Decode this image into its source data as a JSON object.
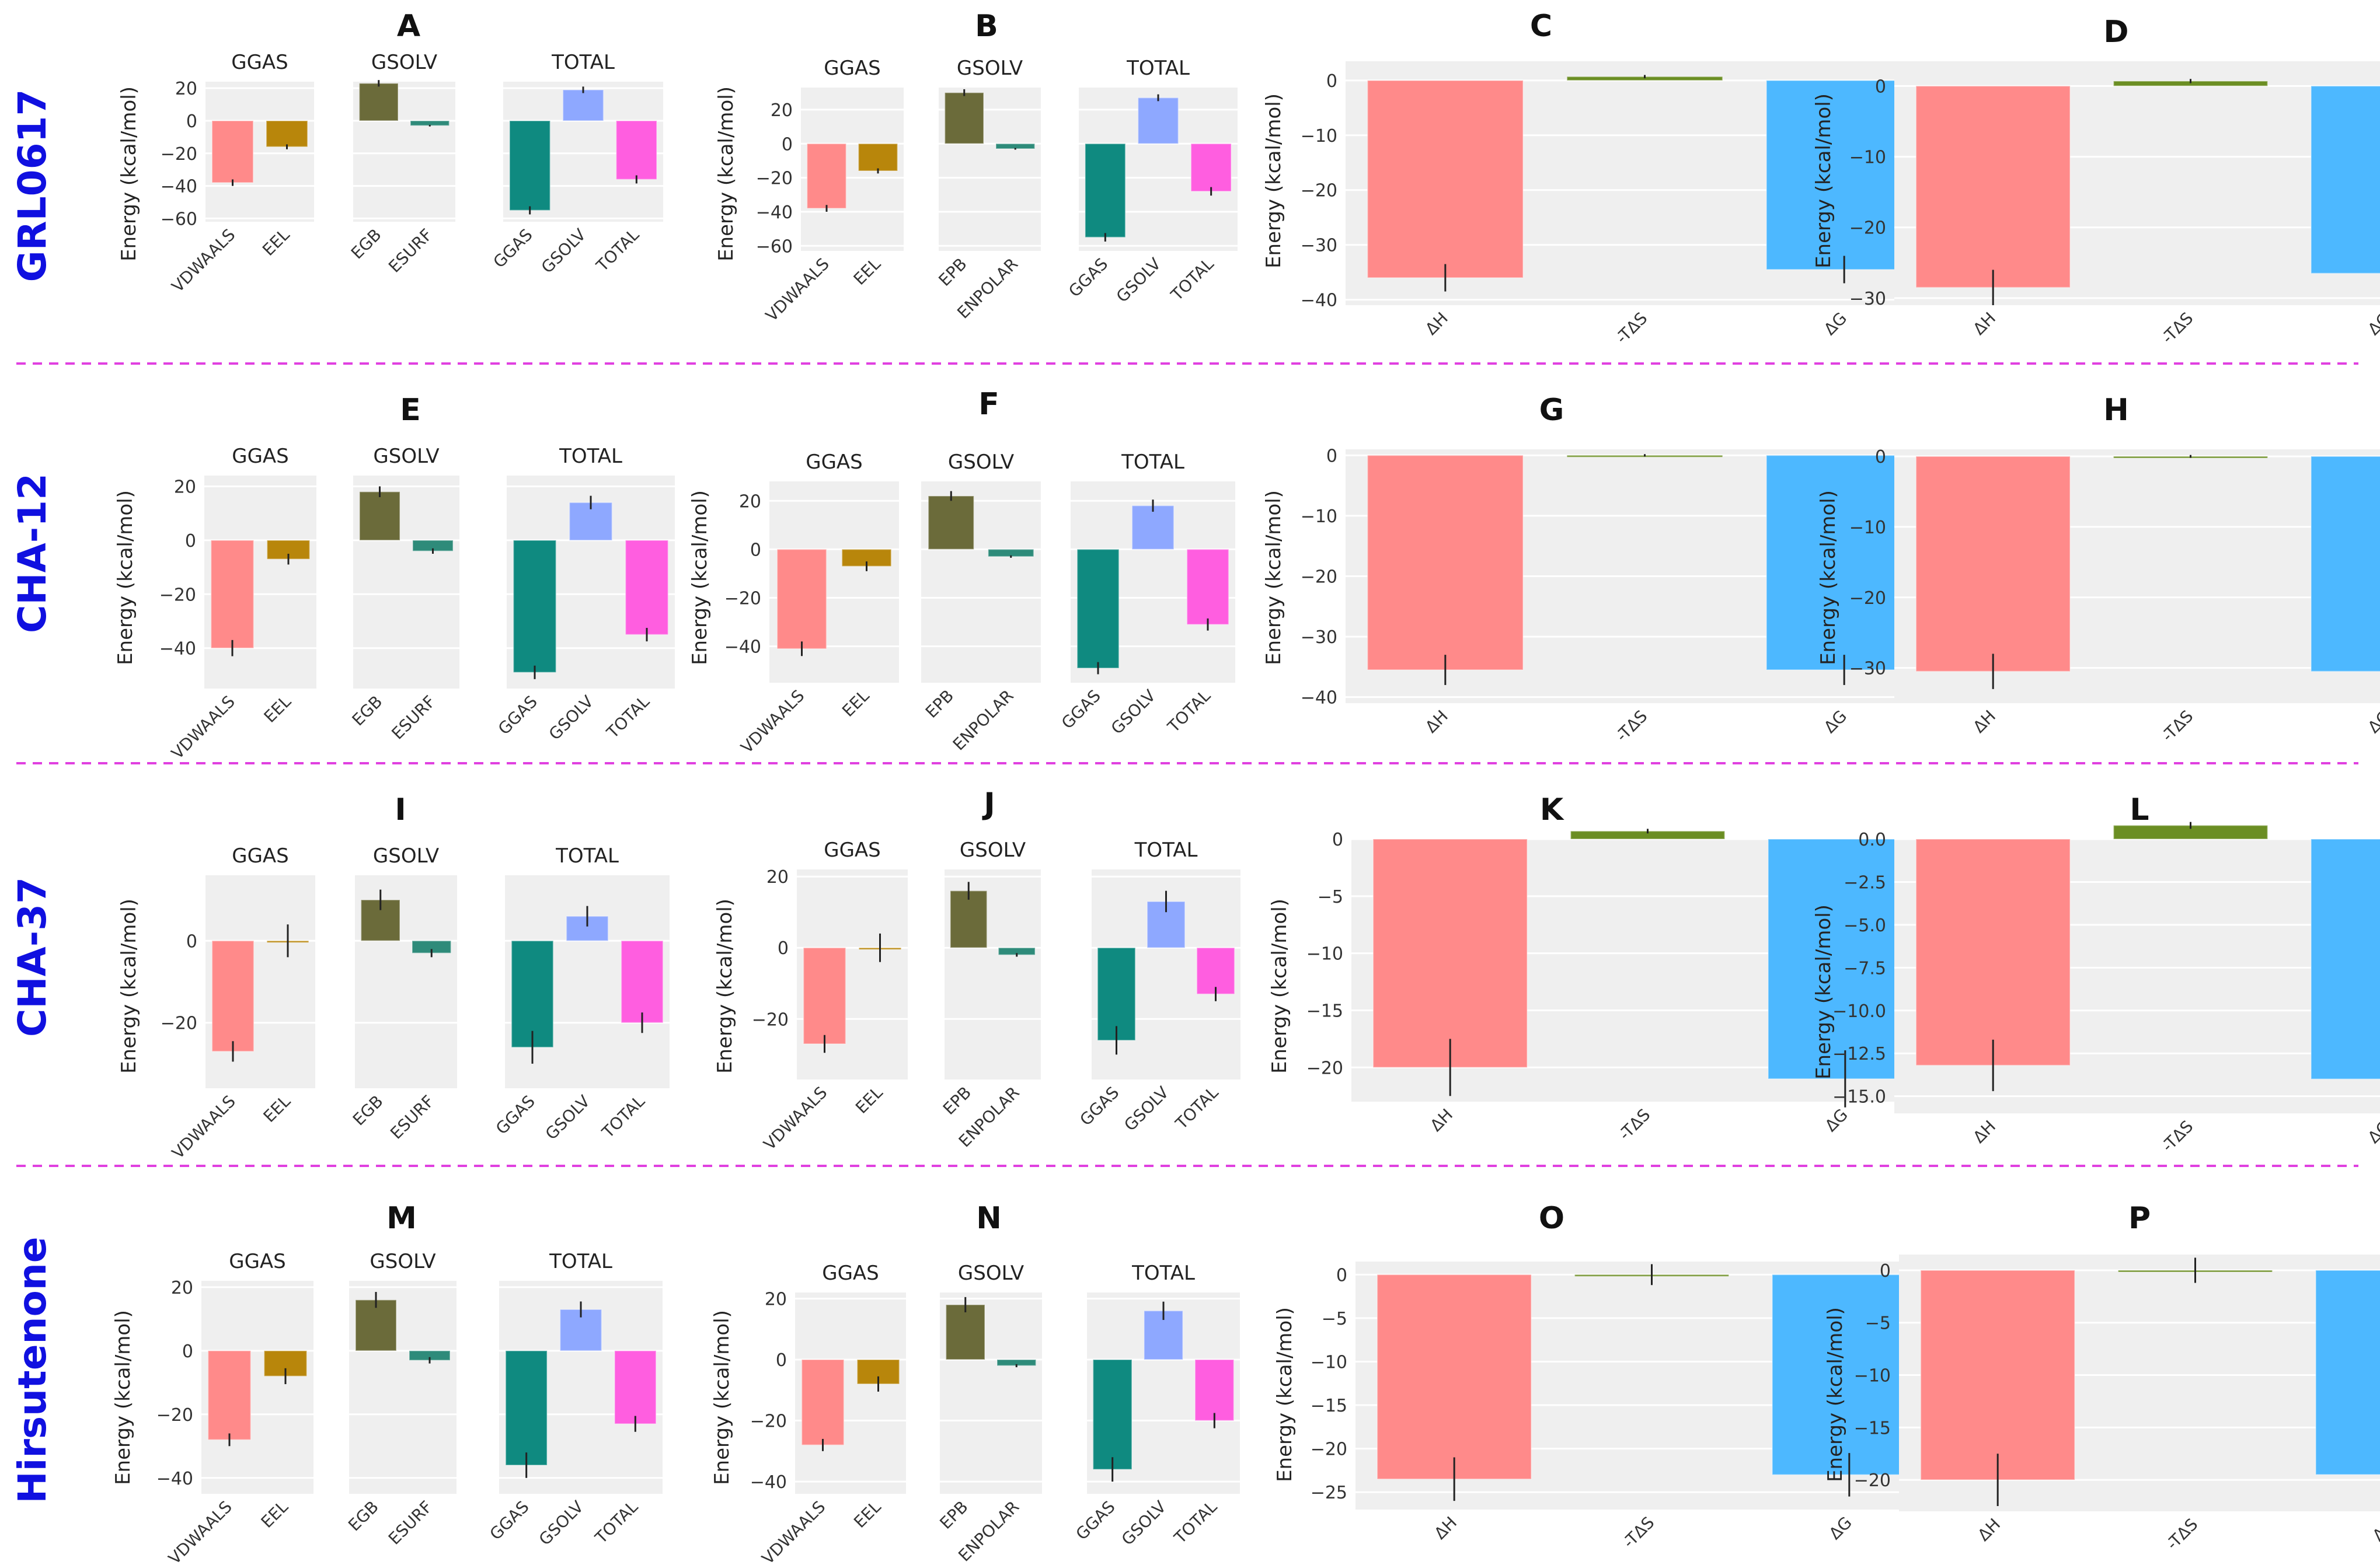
{
  "figure": {
    "row_labels": [
      "GRL0617",
      "CHA-12",
      "CHA-37",
      "Hirsutenone"
    ],
    "ylabel": "Energy (kcal/mol)",
    "colors": {
      "VDWAALS": "#ff8a8a",
      "EEL": "#b8860b",
      "EGB": "#6b6b3a",
      "EPB": "#6b6b3a",
      "ESURF": "#2e8b7a",
      "ENPOLAR": "#2e8b7a",
      "GGAS": "#0f8a80",
      "GSOLV": "#8ea8ff",
      "TOTAL": "#ff5ee0",
      "dH": "#ff8a8a",
      "TdS": "#6b8e23",
      "dG": "#4db8ff",
      "panel_bg": "#efefef",
      "grid": "#ffffff",
      "separator": "#e040e0",
      "row_label": "#1010e0"
    }
  },
  "chart_data": [
    {
      "letter": "A",
      "type": "bar",
      "subpanels": [
        {
          "title": "GGAS",
          "categories": [
            "VDWAALS",
            "EEL"
          ],
          "values": [
            -38,
            -16
          ],
          "errors": [
            2,
            1.5
          ],
          "ylim": [
            24,
            -62
          ],
          "ticks": [
            -60,
            -40,
            -20,
            0,
            20
          ],
          "tick_labels": [
            "−60",
            "−40",
            "−20",
            "0",
            "20"
          ]
        },
        {
          "title": "GSOLV",
          "categories": [
            "EGB",
            "ESURF"
          ],
          "values": [
            23,
            -3
          ],
          "errors": [
            2,
            0.5
          ],
          "ylim": [
            24,
            -62
          ]
        },
        {
          "title": "TOTAL",
          "categories": [
            "GGAS",
            "GSOLV",
            "TOTAL"
          ],
          "values": [
            -55,
            19,
            -36
          ],
          "errors": [
            2.5,
            2,
            2.5
          ],
          "ylim": [
            24,
            -62
          ]
        }
      ]
    },
    {
      "letter": "B",
      "type": "bar",
      "subpanels": [
        {
          "title": "GGAS",
          "categories": [
            "VDWAALS",
            "EEL"
          ],
          "values": [
            -38,
            -16
          ],
          "errors": [
            2,
            1.5
          ],
          "ylim": [
            33,
            -63
          ],
          "ticks": [
            -60,
            -40,
            -20,
            0,
            20
          ],
          "tick_labels": [
            "−60",
            "−40",
            "−20",
            "0",
            "20"
          ]
        },
        {
          "title": "GSOLV",
          "categories": [
            "EPB",
            "ENPOLAR"
          ],
          "values": [
            30,
            -3
          ],
          "errors": [
            2,
            0.5
          ],
          "ylim": [
            33,
            -63
          ]
        },
        {
          "title": "TOTAL",
          "categories": [
            "GGAS",
            "GSOLV",
            "TOTAL"
          ],
          "values": [
            -55,
            27,
            -28
          ],
          "errors": [
            2.5,
            2,
            2.5
          ],
          "ylim": [
            33,
            -63
          ]
        }
      ]
    },
    {
      "letter": "C",
      "type": "bar",
      "subpanels": [
        {
          "title": "",
          "categories": [
            "ΔH",
            "-TΔS",
            "ΔG"
          ],
          "values": [
            -36,
            0.7,
            -34.5
          ],
          "errors": [
            2.5,
            0.3,
            2.5
          ],
          "ylim": [
            3.5,
            -41
          ],
          "ticks": [
            -40,
            -30,
            -20,
            -10,
            0
          ],
          "tick_labels": [
            "−40",
            "−30",
            "−20",
            "−10",
            "0"
          ]
        }
      ]
    },
    {
      "letter": "D",
      "type": "bar",
      "subpanels": [
        {
          "title": "",
          "categories": [
            "ΔH",
            "-TΔS",
            "ΔG"
          ],
          "values": [
            -28.5,
            0.7,
            -26.5
          ],
          "errors": [
            2.5,
            0.3,
            2.5
          ],
          "ylim": [
            3.5,
            -31
          ],
          "ticks": [
            -30,
            -20,
            -10,
            0
          ],
          "tick_labels": [
            "−30",
            "−20",
            "−10",
            "0"
          ]
        }
      ]
    },
    {
      "letter": "E",
      "type": "bar",
      "subpanels": [
        {
          "title": "GGAS",
          "categories": [
            "VDWAALS",
            "EEL"
          ],
          "values": [
            -40,
            -7
          ],
          "errors": [
            3,
            2
          ],
          "ylim": [
            24,
            -55
          ],
          "ticks": [
            -40,
            -20,
            0,
            20
          ],
          "tick_labels": [
            "−40",
            "−20",
            "0",
            "20"
          ]
        },
        {
          "title": "GSOLV",
          "categories": [
            "EGB",
            "ESURF"
          ],
          "values": [
            18,
            -4
          ],
          "errors": [
            2,
            1
          ],
          "ylim": [
            24,
            -55
          ]
        },
        {
          "title": "TOTAL",
          "categories": [
            "GGAS",
            "GSOLV",
            "TOTAL"
          ],
          "values": [
            -49,
            14,
            -35
          ],
          "errors": [
            2.5,
            2.5,
            2.5
          ],
          "ylim": [
            24,
            -55
          ]
        }
      ]
    },
    {
      "letter": "F",
      "type": "bar",
      "subpanels": [
        {
          "title": "GGAS",
          "categories": [
            "VDWAALS",
            "EEL"
          ],
          "values": [
            -41,
            -7
          ],
          "errors": [
            3,
            2
          ],
          "ylim": [
            28,
            -55
          ],
          "ticks": [
            -40,
            -20,
            0,
            20
          ],
          "tick_labels": [
            "−40",
            "−20",
            "0",
            "20"
          ]
        },
        {
          "title": "GSOLV",
          "categories": [
            "EPB",
            "ENPOLAR"
          ],
          "values": [
            22,
            -3
          ],
          "errors": [
            2,
            0.5
          ],
          "ylim": [
            28,
            -55
          ]
        },
        {
          "title": "TOTAL",
          "categories": [
            "GGAS",
            "GSOLV",
            "TOTAL"
          ],
          "values": [
            -49,
            18,
            -31
          ],
          "errors": [
            2.5,
            2.5,
            2.5
          ],
          "ylim": [
            28,
            -55
          ]
        }
      ]
    },
    {
      "letter": "G",
      "type": "bar",
      "subpanels": [
        {
          "title": "",
          "categories": [
            "ΔH",
            "-TΔS",
            "ΔG"
          ],
          "values": [
            -35.5,
            0,
            -35.5
          ],
          "errors": [
            2.5,
            0.2,
            2.5
          ],
          "ylim": [
            1,
            -41
          ],
          "ticks": [
            -40,
            -30,
            -20,
            -10,
            0
          ],
          "tick_labels": [
            "−40",
            "−30",
            "−20",
            "−10",
            "0"
          ]
        }
      ]
    },
    {
      "letter": "H",
      "type": "bar",
      "subpanels": [
        {
          "title": "",
          "categories": [
            "ΔH",
            "-TΔS",
            "ΔG"
          ],
          "values": [
            -30.5,
            0,
            -30.5
          ],
          "errors": [
            2.5,
            0.2,
            2.5
          ],
          "ylim": [
            1,
            -35
          ],
          "ticks": [
            -30,
            -20,
            -10,
            0
          ],
          "tick_labels": [
            "−30",
            "−20",
            "−10",
            "0"
          ]
        }
      ]
    },
    {
      "letter": "I",
      "type": "bar",
      "subpanels": [
        {
          "title": "GGAS",
          "categories": [
            "VDWAALS",
            "EEL"
          ],
          "values": [
            -27,
            0
          ],
          "errors": [
            2.5,
            4
          ],
          "ylim": [
            16,
            -36
          ],
          "ticks": [
            -20,
            0
          ],
          "tick_labels": [
            "−20",
            "0"
          ]
        },
        {
          "title": "GSOLV",
          "categories": [
            "EGB",
            "ESURF"
          ],
          "values": [
            10,
            -3
          ],
          "errors": [
            2.5,
            1
          ],
          "ylim": [
            16,
            -36
          ]
        },
        {
          "title": "TOTAL",
          "categories": [
            "GGAS",
            "GSOLV",
            "TOTAL"
          ],
          "values": [
            -26,
            6,
            -20
          ],
          "errors": [
            4,
            2.5,
            2.5
          ],
          "ylim": [
            16,
            -36
          ]
        }
      ]
    },
    {
      "letter": "J",
      "type": "bar",
      "subpanels": [
        {
          "title": "GGAS",
          "categories": [
            "VDWAALS",
            "EEL"
          ],
          "values": [
            -27,
            0
          ],
          "errors": [
            2.5,
            4
          ],
          "ylim": [
            22,
            -37
          ],
          "ticks": [
            -20,
            0,
            20
          ],
          "tick_labels": [
            "−20",
            "0",
            "20"
          ]
        },
        {
          "title": "GSOLV",
          "categories": [
            "EPB",
            "ENPOLAR"
          ],
          "values": [
            16,
            -2
          ],
          "errors": [
            2.5,
            0.5
          ],
          "ylim": [
            22,
            -37
          ]
        },
        {
          "title": "TOTAL",
          "categories": [
            "GGAS",
            "GSOLV",
            "TOTAL"
          ],
          "values": [
            -26,
            13,
            -13
          ],
          "errors": [
            4,
            3,
            2
          ]
        }
      ]
    },
    {
      "letter": "K",
      "type": "bar",
      "subpanels": [
        {
          "title": "",
          "categories": [
            "ΔH",
            "-TΔS",
            "ΔG"
          ],
          "values": [
            -20,
            0.7,
            -21
          ],
          "errors": [
            2.5,
            0.2,
            2.5
          ],
          "ylim": [
            0,
            -23
          ],
          "ticks": [
            -20,
            -15,
            -10,
            -5,
            0
          ],
          "tick_labels": [
            "−20",
            "−15",
            "−10",
            "−5",
            "0"
          ]
        }
      ]
    },
    {
      "letter": "L",
      "type": "bar",
      "subpanels": [
        {
          "title": "",
          "categories": [
            "ΔH",
            "-TΔS",
            "ΔG"
          ],
          "values": [
            -13.2,
            0.8,
            -14
          ],
          "errors": [
            1.5,
            0.2,
            1.5
          ],
          "ylim": [
            0,
            -16
          ],
          "ticks": [
            -15,
            -12.5,
            -10,
            -7.5,
            -5,
            -2.5,
            0
          ],
          "tick_labels": [
            "−15.0",
            "−12.5",
            "−10.0",
            "−7.5",
            "−5.0",
            "−2.5",
            "0.0"
          ]
        }
      ]
    },
    {
      "letter": "M",
      "type": "bar",
      "subpanels": [
        {
          "title": "GGAS",
          "categories": [
            "VDWAALS",
            "EEL"
          ],
          "values": [
            -28,
            -8
          ],
          "errors": [
            2,
            2.5
          ],
          "ylim": [
            22,
            -45
          ],
          "ticks": [
            -40,
            -20,
            0,
            20
          ],
          "tick_labels": [
            "−40",
            "−20",
            "0",
            "20"
          ]
        },
        {
          "title": "GSOLV",
          "categories": [
            "EGB",
            "ESURF"
          ],
          "values": [
            16,
            -3
          ],
          "errors": [
            2.5,
            1
          ],
          "ylim": [
            22,
            -45
          ]
        },
        {
          "title": "TOTAL",
          "categories": [
            "GGAS",
            "GSOLV",
            "TOTAL"
          ],
          "values": [
            -36,
            13,
            -23
          ],
          "errors": [
            4,
            2.5,
            2.5
          ],
          "ylim": [
            22,
            -45
          ]
        }
      ]
    },
    {
      "letter": "N",
      "type": "bar",
      "subpanels": [
        {
          "title": "GGAS",
          "categories": [
            "VDWAALS",
            "EEL"
          ],
          "values": [
            -28,
            -8
          ],
          "errors": [
            2,
            2.5
          ],
          "ylim": [
            22,
            -44
          ],
          "ticks": [
            -40,
            -20,
            0,
            20
          ],
          "tick_labels": [
            "−40",
            "−20",
            "0",
            "20"
          ]
        },
        {
          "title": "GSOLV",
          "categories": [
            "EPB",
            "ENPOLAR"
          ],
          "values": [
            18,
            -2
          ],
          "errors": [
            2.5,
            0.5
          ],
          "ylim": [
            22,
            -44
          ]
        },
        {
          "title": "TOTAL",
          "categories": [
            "GGAS",
            "GSOLV",
            "TOTAL"
          ],
          "values": [
            -36,
            16,
            -20
          ],
          "errors": [
            4,
            3,
            2.5
          ],
          "ylim": [
            22,
            -44
          ]
        }
      ]
    },
    {
      "letter": "O",
      "type": "bar",
      "subpanels": [
        {
          "title": "",
          "categories": [
            "ΔH",
            "-TΔS",
            "ΔG"
          ],
          "values": [
            -23.5,
            0,
            -23
          ],
          "errors": [
            2.5,
            1.2,
            2.5
          ],
          "ylim": [
            1.5,
            -27
          ],
          "ticks": [
            -25,
            -20,
            -15,
            -10,
            -5,
            0
          ],
          "tick_labels": [
            "−25",
            "−20",
            "−15",
            "−10",
            "−5",
            "0"
          ]
        }
      ]
    },
    {
      "letter": "P",
      "type": "bar",
      "subpanels": [
        {
          "title": "",
          "categories": [
            "ΔH",
            "-TΔS",
            "ΔG"
          ],
          "values": [
            -20,
            0,
            -19.5
          ],
          "errors": [
            2.5,
            1.2,
            3
          ],
          "ylim": [
            1.5,
            -23
          ],
          "ticks": [
            -20,
            -15,
            -10,
            -5,
            0
          ],
          "tick_labels": [
            "−20",
            "−15",
            "−10",
            "−5",
            "0"
          ]
        }
      ]
    }
  ]
}
